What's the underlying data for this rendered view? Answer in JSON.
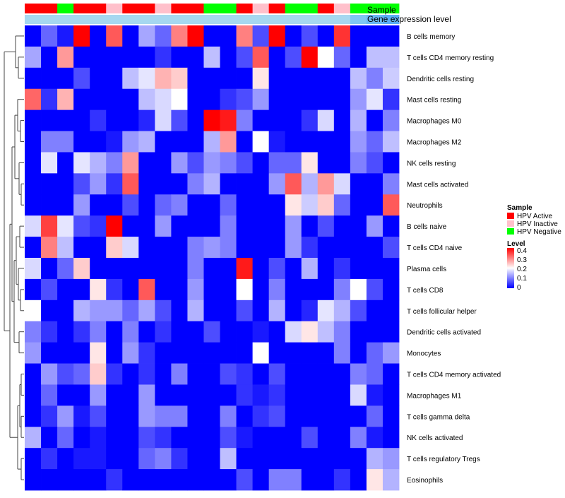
{
  "chart_data": {
    "type": "heatmap",
    "title": "",
    "annotation_labels": {
      "sample": "Sample",
      "gene_expression": "Gene expression level"
    },
    "sample_annotation": [
      "HPV Active",
      "HPV Active",
      "HPV Negative",
      "HPV Active",
      "HPV Active",
      "HPV Inactive",
      "HPV Active",
      "HPV Active",
      "HPV Inactive",
      "HPV Active",
      "HPV Active",
      "HPV Negative",
      "HPV Negative",
      "HPV Active",
      "HPV Inactive",
      "HPV Active",
      "HPV Negative",
      "HPV Negative",
      "HPV Active",
      "HPV Inactive",
      "HPV Negative",
      "HPV Negative",
      "HPV Negative"
    ],
    "sample_colors": {
      "HPV Active": "#ff0000",
      "HPV Inactive": "#ffc0cb",
      "HPV Negative": "#00ff00"
    },
    "expression_level_colors": [
      "#a6d8f0",
      "#a6d8f0",
      "#a6d8f0",
      "#a6d8f0",
      "#a6d8f0",
      "#a6d8f0",
      "#a6d8f0",
      "#a6d8f0",
      "#a6d8f0",
      "#a6d8f0",
      "#a6d8f0",
      "#a6d8f0",
      "#a6d8f0",
      "#a6d8f0",
      "#a6d8f0",
      "#a6d8f0",
      "#a6d8f0",
      "#a6d8f0",
      "#a6d8f0",
      "#a6d8f0",
      "#7fc6f3",
      "#6ab8f5",
      "#5aaef7"
    ],
    "rows": [
      "B cells memory",
      "T cells CD4 memory resting",
      "Dendritic cells resting",
      "Mast cells resting",
      "Macrophages M0",
      "Macrophages M2",
      "NK cells resting",
      "Mast cells activated",
      "Neutrophils",
      "B cells naive",
      "T cells CD4 naive",
      "Plasma cells",
      "T cells CD8",
      "T cells follicular helper",
      "Dendritic cells activated",
      "Monocytes",
      "T cells CD4 memory activated",
      "Macrophages M1",
      "T cells gamma delta",
      "NK cells activated",
      "T cells regulatory  Tregs",
      "Eosinophils"
    ],
    "values": [
      [
        0.0,
        0.08,
        0.02,
        0.4,
        0.0,
        0.33,
        0.0,
        0.13,
        0.08,
        0.3,
        0.4,
        0.0,
        0.0,
        0.3,
        0.06,
        0.4,
        0.0,
        0.06,
        0.0,
        0.36,
        0.0,
        0.0,
        0.0
      ],
      [
        0.13,
        0.0,
        0.28,
        0.0,
        0.0,
        0.0,
        0.0,
        0.0,
        0.04,
        0.0,
        0.0,
        0.15,
        0.0,
        0.06,
        0.33,
        0.0,
        0.06,
        0.4,
        0.2,
        0.08,
        0.0,
        0.15,
        0.15
      ],
      [
        0.0,
        0.0,
        0.0,
        0.06,
        0.0,
        0.0,
        0.15,
        0.18,
        0.26,
        0.24,
        0.0,
        0.0,
        0.0,
        0.0,
        0.22,
        0.0,
        0.0,
        0.0,
        0.0,
        0.0,
        0.15,
        0.1,
        0.16
      ],
      [
        0.32,
        0.04,
        0.26,
        0.0,
        0.0,
        0.0,
        0.0,
        0.15,
        0.17,
        0.2,
        0.0,
        0.0,
        0.04,
        0.06,
        0.12,
        0.0,
        0.0,
        0.0,
        0.0,
        0.0,
        0.12,
        0.18,
        0.04
      ],
      [
        0.0,
        0.0,
        0.0,
        0.0,
        0.04,
        0.0,
        0.0,
        0.03,
        0.17,
        0.06,
        0.0,
        0.4,
        0.38,
        0.1,
        0.0,
        0.0,
        0.0,
        0.04,
        0.17,
        0.0,
        0.14,
        0.0,
        0.1
      ],
      [
        0.0,
        0.1,
        0.1,
        0.0,
        0.0,
        0.02,
        0.12,
        0.14,
        0.0,
        0.0,
        0.0,
        0.14,
        0.28,
        0.0,
        0.2,
        0.02,
        0.0,
        0.0,
        0.0,
        0.0,
        0.12,
        0.08,
        0.15
      ],
      [
        0.0,
        0.18,
        0.0,
        0.18,
        0.14,
        0.1,
        0.28,
        0.0,
        0.0,
        0.12,
        0.06,
        0.12,
        0.1,
        0.06,
        0.0,
        0.08,
        0.08,
        0.22,
        0.0,
        0.0,
        0.1,
        0.06,
        0.0
      ],
      [
        0.0,
        0.0,
        0.0,
        0.06,
        0.12,
        0.04,
        0.33,
        0.0,
        0.0,
        0.0,
        0.1,
        0.14,
        0.0,
        0.0,
        0.0,
        0.12,
        0.33,
        0.14,
        0.28,
        0.17,
        0.0,
        0.0,
        0.1
      ],
      [
        0.0,
        0.0,
        0.0,
        0.12,
        0.0,
        0.0,
        0.06,
        0.0,
        0.08,
        0.1,
        0.0,
        0.0,
        0.08,
        0.0,
        0.0,
        0.0,
        0.22,
        0.16,
        0.24,
        0.08,
        0.0,
        0.0,
        0.33
      ],
      [
        0.17,
        0.35,
        0.18,
        0.06,
        0.04,
        0.4,
        0.0,
        0.0,
        0.12,
        0.0,
        0.0,
        0.0,
        0.1,
        0.0,
        0.0,
        0.0,
        0.12,
        0.0,
        0.06,
        0.0,
        0.0,
        0.12,
        0.0
      ],
      [
        0.0,
        0.3,
        0.15,
        0.0,
        0.0,
        0.24,
        0.17,
        0.0,
        0.0,
        0.0,
        0.1,
        0.12,
        0.1,
        0.0,
        0.0,
        0.0,
        0.12,
        0.04,
        0.0,
        0.0,
        0.0,
        0.0,
        0.06
      ],
      [
        0.17,
        0.0,
        0.08,
        0.24,
        0.0,
        0.0,
        0.0,
        0.0,
        0.0,
        0.0,
        0.1,
        0.0,
        0.0,
        0.38,
        0.0,
        0.06,
        0.0,
        0.14,
        0.0,
        0.04,
        0.0,
        0.0,
        0.0
      ],
      [
        0.0,
        0.06,
        0.0,
        0.0,
        0.22,
        0.04,
        0.0,
        0.33,
        0.0,
        0.0,
        0.12,
        0.0,
        0.0,
        0.2,
        0.0,
        0.1,
        0.0,
        0.0,
        0.0,
        0.1,
        0.2,
        0.06,
        0.0
      ],
      [
        0.2,
        0.0,
        0.0,
        0.14,
        0.12,
        0.12,
        0.08,
        0.13,
        0.06,
        0.0,
        0.14,
        0.0,
        0.0,
        0.06,
        0.0,
        0.14,
        0.0,
        0.03,
        0.18,
        0.14,
        0.06,
        0.0,
        0.0
      ],
      [
        0.1,
        0.04,
        0.0,
        0.04,
        0.1,
        0.0,
        0.1,
        0.0,
        0.04,
        0.0,
        0.0,
        0.06,
        0.0,
        0.0,
        0.02,
        0.0,
        0.17,
        0.22,
        0.15,
        0.1,
        0.0,
        0.0,
        0.0
      ],
      [
        0.12,
        0.0,
        0.0,
        0.0,
        0.22,
        0.0,
        0.12,
        0.04,
        0.0,
        0.0,
        0.0,
        0.0,
        0.0,
        0.0,
        0.2,
        0.0,
        0.0,
        0.0,
        0.0,
        0.1,
        0.0,
        0.08,
        0.12
      ],
      [
        0.0,
        0.12,
        0.06,
        0.08,
        0.24,
        0.04,
        0.0,
        0.04,
        0.0,
        0.1,
        0.0,
        0.0,
        0.06,
        0.04,
        0.0,
        0.06,
        0.0,
        0.0,
        0.0,
        0.0,
        0.1,
        0.08,
        0.0
      ],
      [
        0.0,
        0.08,
        0.0,
        0.0,
        0.12,
        0.0,
        0.0,
        0.12,
        0.0,
        0.0,
        0.0,
        0.0,
        0.0,
        0.04,
        0.02,
        0.04,
        0.0,
        0.0,
        0.0,
        0.0,
        0.17,
        0.02,
        0.0
      ],
      [
        0.0,
        0.04,
        0.12,
        0.02,
        0.06,
        0.0,
        0.0,
        0.12,
        0.1,
        0.1,
        0.0,
        0.0,
        0.1,
        0.0,
        0.04,
        0.06,
        0.0,
        0.0,
        0.0,
        0.0,
        0.0,
        0.08,
        0.0
      ],
      [
        0.14,
        0.0,
        0.08,
        0.0,
        0.02,
        0.0,
        0.0,
        0.06,
        0.04,
        0.0,
        0.0,
        0.0,
        0.06,
        0.02,
        0.0,
        0.0,
        0.0,
        0.06,
        0.0,
        0.0,
        0.1,
        0.02,
        0.0
      ],
      [
        0.0,
        0.04,
        0.0,
        0.02,
        0.02,
        0.0,
        0.0,
        0.08,
        0.1,
        0.04,
        0.0,
        0.0,
        0.15,
        0.0,
        0.0,
        0.0,
        0.0,
        0.0,
        0.0,
        0.0,
        0.0,
        0.14,
        0.12
      ],
      [
        0.0,
        0.0,
        0.0,
        0.0,
        0.0,
        0.04,
        0.0,
        0.0,
        0.0,
        0.0,
        0.0,
        0.0,
        0.0,
        0.06,
        0.0,
        0.1,
        0.1,
        0.0,
        0.0,
        0.04,
        0.0,
        0.22,
        0.14
      ]
    ],
    "dendrogram": {
      "comment": "row tree, leaf indices refer to rows[] order; heights in arbitrary distance units",
      "root_height": 1.0
    },
    "legend": {
      "sample_title": "Sample",
      "sample_entries": [
        "HPV Active",
        "HPV Inactive",
        "HPV Negative"
      ],
      "level_title": "Level",
      "level_ticks": [
        "0.4",
        "0.3",
        "0.2",
        "0.1",
        "0"
      ],
      "level_range": [
        0,
        0.4
      ]
    },
    "color_scale": {
      "low": "#0000ff",
      "mid": "#ffffff",
      "high": "#ff0000",
      "mid_value": 0.2
    }
  }
}
